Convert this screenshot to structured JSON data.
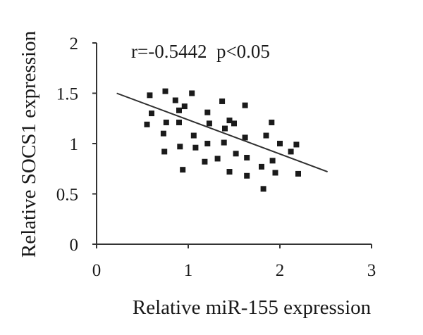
{
  "chart_data": {
    "type": "scatter",
    "xlabel": "Relative miR-155 expression",
    "ylabel": "Relative SOCS1 expression",
    "annotation": "r=-0.5442  p<0.05",
    "xlim": [
      0,
      3
    ],
    "ylim": [
      0,
      2
    ],
    "xticks": [
      "0",
      "1",
      "2",
      "3"
    ],
    "yticks": [
      "0",
      "0.5",
      "1",
      "1.5",
      "2"
    ],
    "grid": false,
    "legend": "none",
    "trendline": {
      "x": [
        0.22,
        2.52
      ],
      "y": [
        1.5,
        0.72
      ]
    },
    "points": [
      {
        "x": 0.58,
        "y": 1.48
      },
      {
        "x": 0.6,
        "y": 1.3
      },
      {
        "x": 0.55,
        "y": 1.19
      },
      {
        "x": 0.75,
        "y": 1.52
      },
      {
        "x": 0.73,
        "y": 1.1
      },
      {
        "x": 0.76,
        "y": 1.21
      },
      {
        "x": 0.74,
        "y": 0.92
      },
      {
        "x": 0.86,
        "y": 1.43
      },
      {
        "x": 0.9,
        "y": 1.33
      },
      {
        "x": 0.96,
        "y": 1.37
      },
      {
        "x": 0.9,
        "y": 1.21
      },
      {
        "x": 0.91,
        "y": 0.97
      },
      {
        "x": 0.94,
        "y": 0.74
      },
      {
        "x": 1.04,
        "y": 1.5
      },
      {
        "x": 1.06,
        "y": 1.08
      },
      {
        "x": 1.08,
        "y": 0.96
      },
      {
        "x": 1.18,
        "y": 0.82
      },
      {
        "x": 1.21,
        "y": 1.31
      },
      {
        "x": 1.23,
        "y": 1.2
      },
      {
        "x": 1.21,
        "y": 1.0
      },
      {
        "x": 1.32,
        "y": 0.85
      },
      {
        "x": 1.37,
        "y": 1.42
      },
      {
        "x": 1.4,
        "y": 1.15
      },
      {
        "x": 1.39,
        "y": 1.01
      },
      {
        "x": 1.45,
        "y": 1.23
      },
      {
        "x": 1.45,
        "y": 0.72
      },
      {
        "x": 1.5,
        "y": 1.2
      },
      {
        "x": 1.52,
        "y": 0.9
      },
      {
        "x": 1.62,
        "y": 1.38
      },
      {
        "x": 1.62,
        "y": 1.06
      },
      {
        "x": 1.64,
        "y": 0.86
      },
      {
        "x": 1.64,
        "y": 0.68
      },
      {
        "x": 1.8,
        "y": 0.77
      },
      {
        "x": 1.82,
        "y": 0.55
      },
      {
        "x": 1.85,
        "y": 1.08
      },
      {
        "x": 1.91,
        "y": 1.21
      },
      {
        "x": 1.92,
        "y": 0.83
      },
      {
        "x": 1.95,
        "y": 0.71
      },
      {
        "x": 2.0,
        "y": 1.0
      },
      {
        "x": 2.12,
        "y": 0.92
      },
      {
        "x": 2.18,
        "y": 0.99
      },
      {
        "x": 2.2,
        "y": 0.7
      }
    ]
  }
}
